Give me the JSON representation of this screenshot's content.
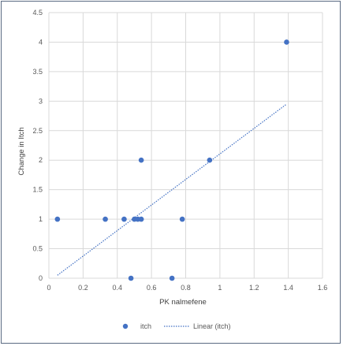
{
  "chart_data": {
    "type": "scatter",
    "title": "",
    "xlabel": "PK  nalmefene",
    "ylabel": "Change in Itch",
    "xlim": [
      0,
      1.6
    ],
    "ylim": [
      0,
      4.5
    ],
    "x_ticks": [
      "0",
      "0.2",
      "0.4",
      "0.6",
      "0.8",
      "1",
      "1.2",
      "1.4",
      "1.6"
    ],
    "y_ticks": [
      "0",
      "0.5",
      "1",
      "1.5",
      "2",
      "2.5",
      "3",
      "3.5",
      "4",
      "4.5"
    ],
    "grid": true,
    "legend_position": "bottom",
    "series": [
      {
        "name": "itch",
        "color": "#4472c4",
        "points": [
          {
            "x": 0.05,
            "y": 1
          },
          {
            "x": 0.33,
            "y": 1
          },
          {
            "x": 0.44,
            "y": 1
          },
          {
            "x": 0.48,
            "y": 0
          },
          {
            "x": 0.5,
            "y": 1
          },
          {
            "x": 0.52,
            "y": 1
          },
          {
            "x": 0.54,
            "y": 1
          },
          {
            "x": 0.54,
            "y": 2
          },
          {
            "x": 0.72,
            "y": 0
          },
          {
            "x": 0.78,
            "y": 1
          },
          {
            "x": 0.94,
            "y": 2
          },
          {
            "x": 1.39,
            "y": 4
          }
        ]
      }
    ],
    "trendline": {
      "name": "Linear (itch)",
      "color": "#4472c4",
      "style": "dotted",
      "from": {
        "x": 0.05,
        "y": 0.05
      },
      "to": {
        "x": 1.39,
        "y": 2.95
      }
    }
  }
}
